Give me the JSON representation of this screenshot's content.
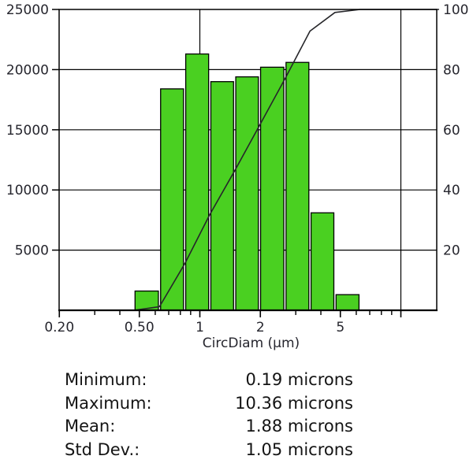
{
  "chart_data": {
    "type": "bar",
    "subtype": "histogram-with-cumulative-line",
    "x_axis": {
      "label": "CircDiam (µm)",
      "scale": "log",
      "min": 0.2,
      "max": 15.5,
      "ticks": [
        {
          "v": 0.2,
          "label": "0.20"
        },
        {
          "v": 0.5,
          "label": "0.50"
        },
        {
          "v": 1,
          "label": "1"
        },
        {
          "v": 2,
          "label": "2"
        },
        {
          "v": 5,
          "label": "5"
        },
        {
          "v": 10,
          "label": ""
        }
      ],
      "minor_ticks": [
        0.3,
        0.4,
        0.6,
        0.7,
        0.8,
        0.9,
        3,
        4,
        6,
        7,
        8,
        9
      ]
    },
    "y_left": {
      "min": 0,
      "max": 25000,
      "ticks": [
        5000,
        10000,
        15000,
        20000,
        25000
      ]
    },
    "y_right": {
      "min": 0,
      "max": 100,
      "ticks": [
        20,
        40,
        60,
        80,
        100
      ]
    },
    "gridlines": {
      "horizontal": [
        5000,
        10000,
        15000,
        20000
      ],
      "vertical": [
        1,
        10
      ]
    },
    "bars": {
      "bin_edges": [
        0.47,
        0.63,
        0.84,
        1.12,
        1.49,
        1.98,
        2.65,
        3.53,
        4.7,
        6.27
      ],
      "counts": [
        1600,
        18400,
        21300,
        19000,
        19400,
        20200,
        20600,
        8100,
        1300
      ],
      "fill": "#4ad021",
      "stroke": "#000000"
    },
    "cumulative": {
      "units": "percent",
      "points": [
        {
          "x": 0.47,
          "pct": 0
        },
        {
          "x": 0.63,
          "pct": 1.2
        },
        {
          "x": 0.84,
          "pct": 15.4
        },
        {
          "x": 1.12,
          "pct": 31.8
        },
        {
          "x": 1.49,
          "pct": 46.4
        },
        {
          "x": 1.98,
          "pct": 61.4
        },
        {
          "x": 2.65,
          "pct": 76.9
        },
        {
          "x": 3.53,
          "pct": 92.8
        },
        {
          "x": 4.7,
          "pct": 99.0
        },
        {
          "x": 6.27,
          "pct": 100
        },
        {
          "x": 15.5,
          "pct": 100
        }
      ],
      "color": "#26262a"
    },
    "colors": {
      "axis": "#000000",
      "tick_label": "#26262e",
      "background": "#ffffff"
    }
  },
  "stats": {
    "rows": [
      {
        "label": "Minimum:",
        "value": "0.19 microns"
      },
      {
        "label": "Maximum:",
        "value": "10.36 microns"
      },
      {
        "label": "Mean:",
        "value": "1.88 microns"
      },
      {
        "label": "Std Dev.:",
        "value": "1.05 microns"
      }
    ]
  }
}
